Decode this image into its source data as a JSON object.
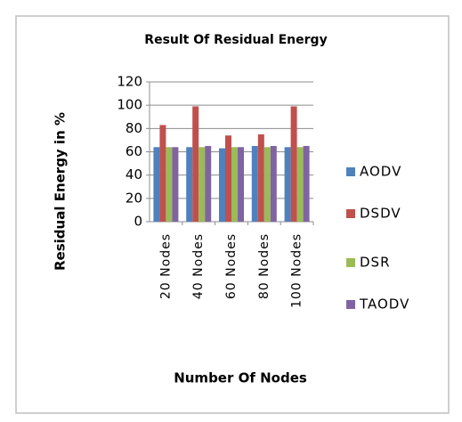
{
  "chart_data": {
    "type": "bar",
    "title": "Result Of Residual Energy",
    "x_label": "Number Of Nodes",
    "y_label": "Residual Energy in %",
    "categories": [
      "20 Nodes",
      "40 Nodes",
      "60 Nodes",
      "80 Nodes",
      "100 Nodes"
    ],
    "series": [
      {
        "name": "AODV",
        "color": "#4f81bd",
        "values": [
          64,
          64,
          63,
          65,
          64
        ]
      },
      {
        "name": "DSDV",
        "color": "#c0504d",
        "values": [
          83,
          99,
          74,
          75,
          99
        ]
      },
      {
        "name": "DSR",
        "color": "#9bbb59",
        "values": [
          64,
          64,
          64,
          64,
          64
        ]
      },
      {
        "name": "TAODV",
        "color": "#8064a2",
        "values": [
          64,
          65,
          64,
          65,
          65
        ]
      }
    ],
    "ylim": [
      0,
      120
    ],
    "yticks": [
      0,
      20,
      40,
      60,
      80,
      100,
      120
    ],
    "grid": true,
    "legend": "right"
  }
}
